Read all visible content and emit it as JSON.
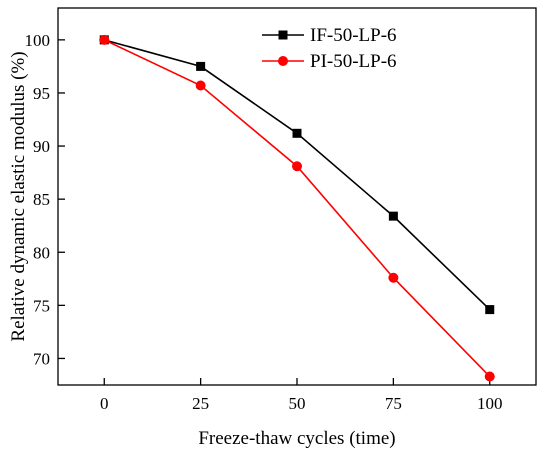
{
  "chart_data": {
    "type": "line",
    "xlabel": "Freeze-thaw cycles (time)",
    "ylabel": "Relative dynamic elastic modulus (%)",
    "x": [
      0,
      25,
      50,
      75,
      100
    ],
    "xlim": [
      -12,
      112
    ],
    "ylim": [
      67.5,
      103
    ],
    "xticks": [
      0,
      25,
      50,
      75,
      100
    ],
    "yticks": [
      70,
      75,
      80,
      85,
      90,
      95,
      100
    ],
    "grid": false,
    "legend_position": "top-right",
    "series": [
      {
        "name": "IF-50-LP-6",
        "color": "#000000",
        "marker": "square",
        "values": [
          100,
          97.5,
          91.2,
          83.4,
          74.6
        ]
      },
      {
        "name": "PI-50-LP-6",
        "color": "#ff0000",
        "marker": "circle",
        "values": [
          100,
          95.7,
          88.1,
          77.6,
          68.3
        ]
      }
    ]
  }
}
